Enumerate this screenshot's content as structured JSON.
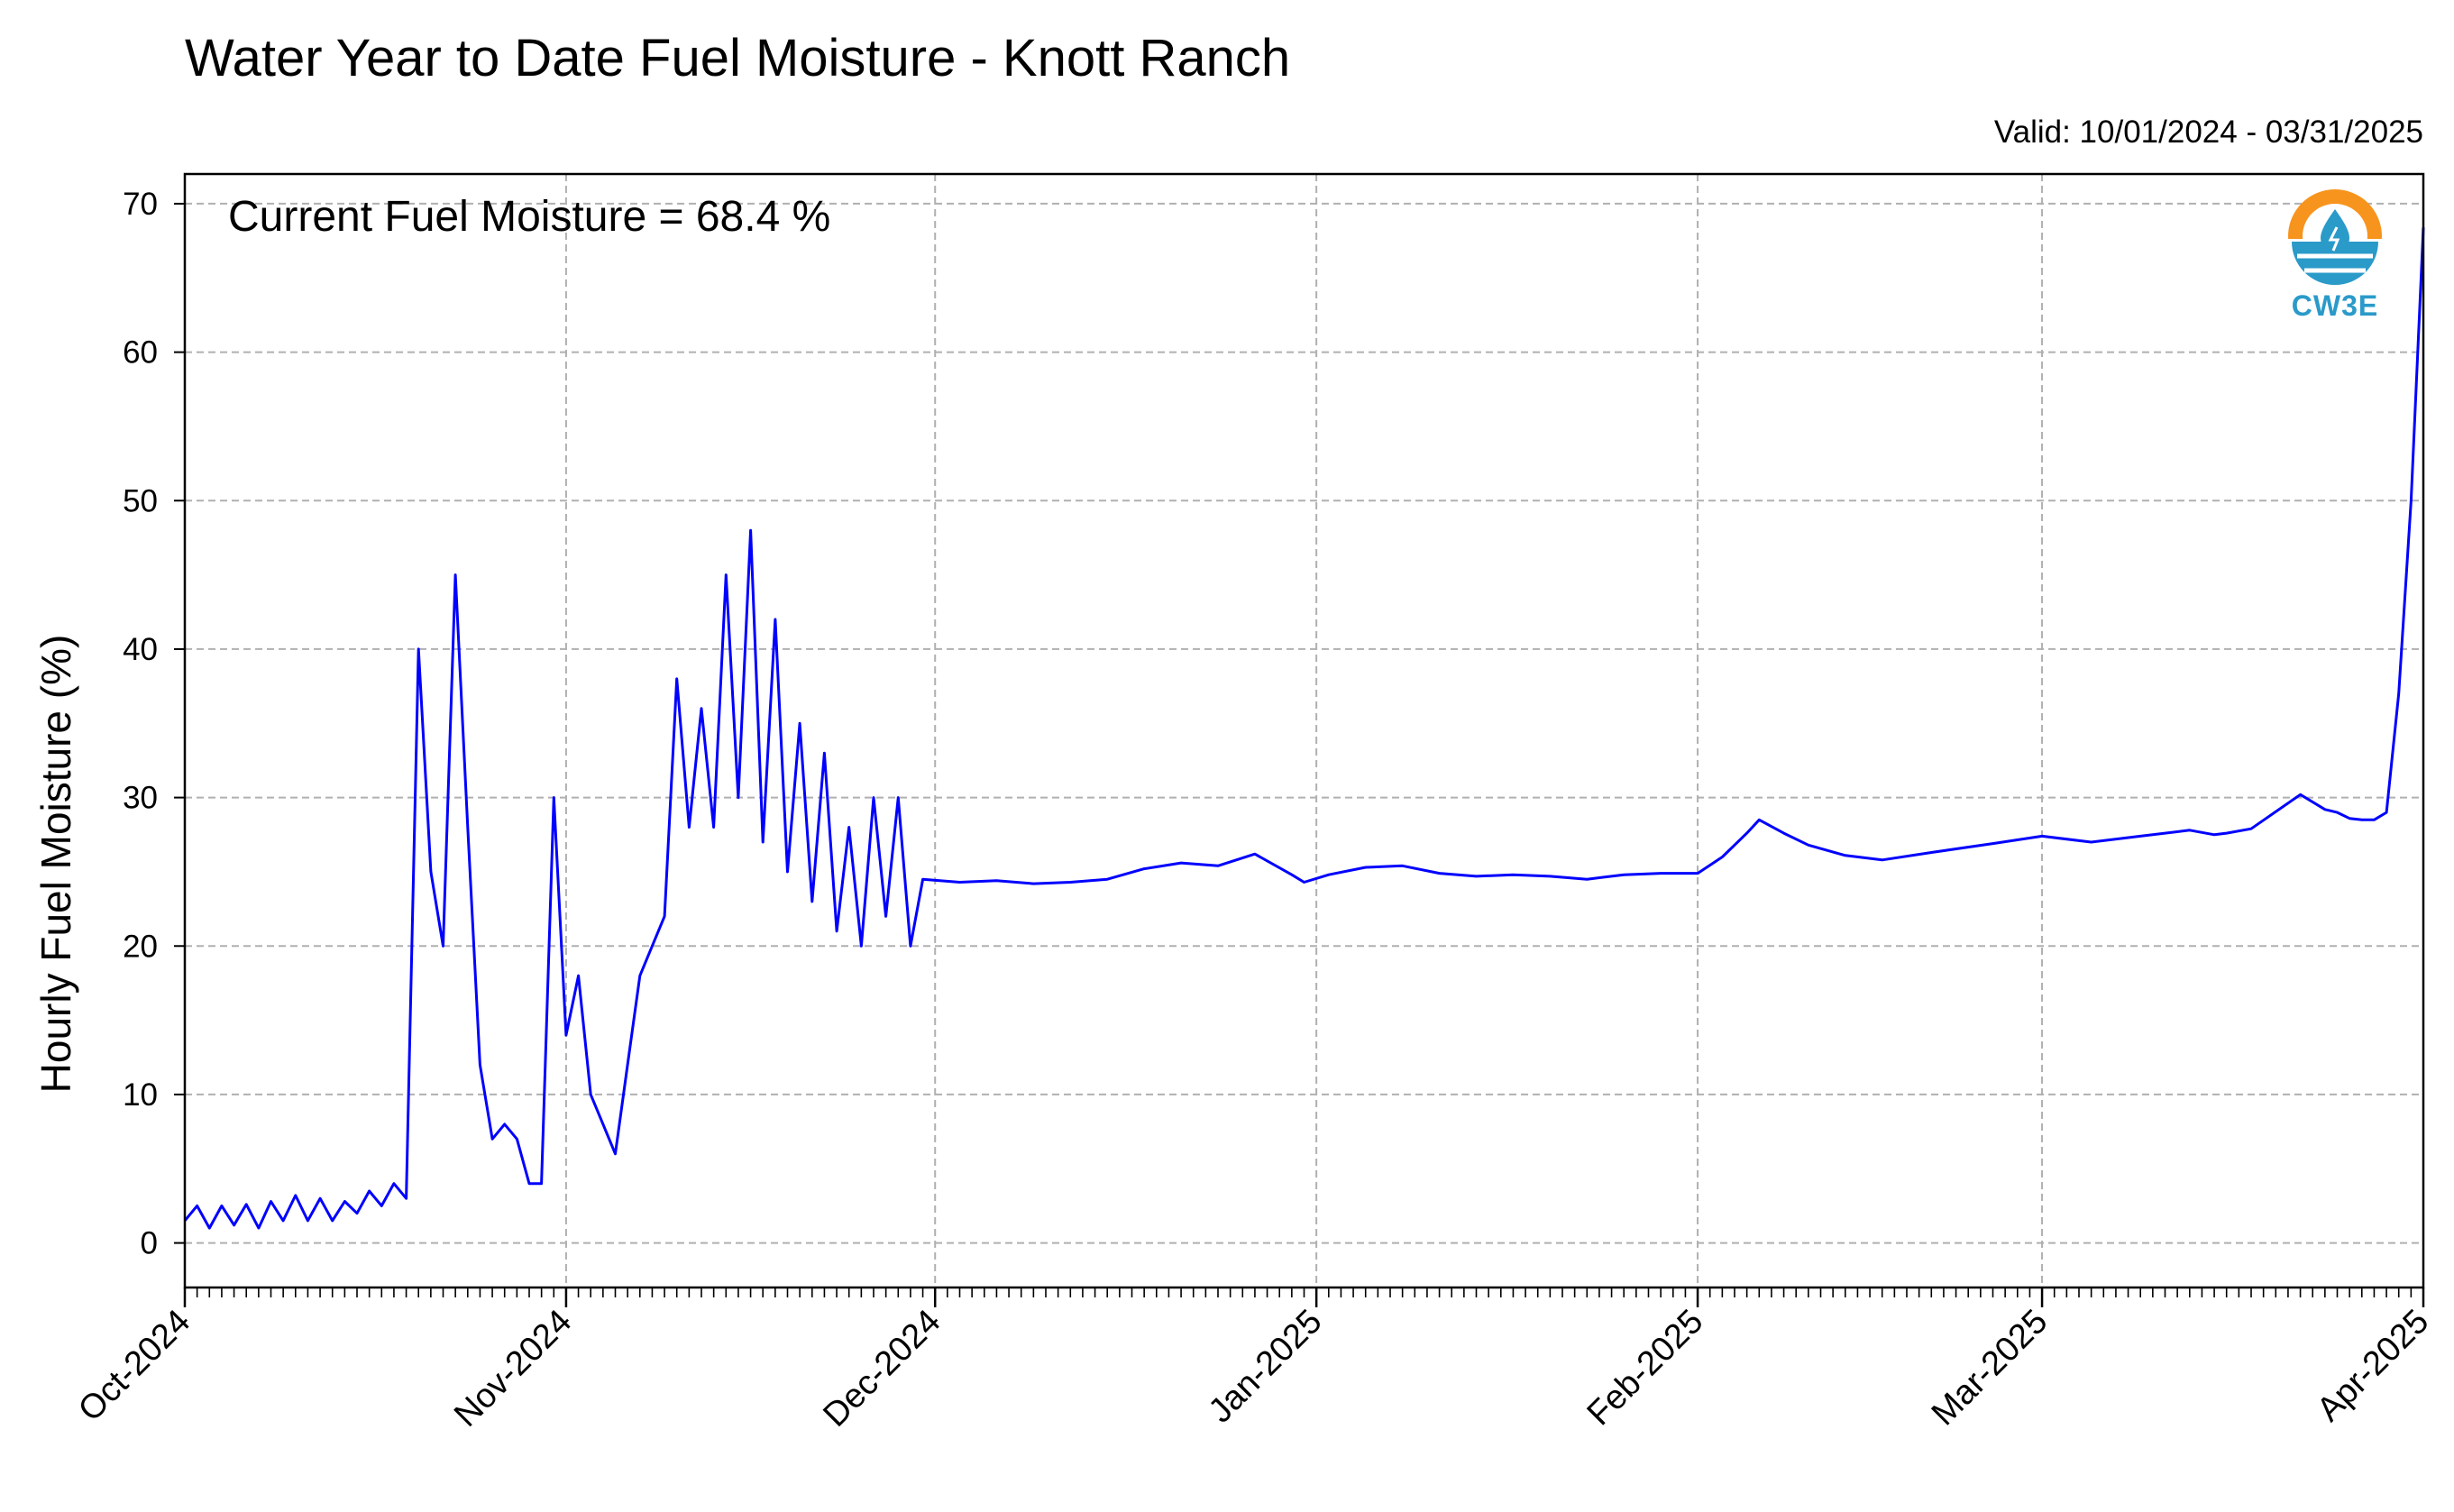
{
  "chart_data": {
    "type": "line",
    "title": "Water Year to Date Fuel Moisture - Knott Ranch",
    "subtitle": "Valid: 10/01/2024 - 03/31/2025",
    "annotation": "Current Fuel Moisture = 68.4 %",
    "xlabel": "",
    "ylabel": "Hourly Fuel Moisture (%)",
    "x_range": [
      "2024-10-01",
      "2025-04-01"
    ],
    "ylim": [
      -3,
      72
    ],
    "yticks": [
      0,
      10,
      20,
      30,
      40,
      50,
      60,
      70
    ],
    "xtick_labels": [
      "Oct-2024",
      "Nov-2024",
      "Dec-2024",
      "Jan-2025",
      "Feb-2025",
      "Mar-2025",
      "Apr-2025"
    ],
    "xtick_dates": [
      "2024-10-01",
      "2024-11-01",
      "2024-12-01",
      "2025-01-01",
      "2025-02-01",
      "2025-03-01",
      "2025-04-01"
    ],
    "grid": true,
    "line_color": "#0000ff",
    "series": [
      {
        "x": [
          "2024-10-01",
          "2024-10-02",
          "2024-10-03",
          "2024-10-04",
          "2024-10-05",
          "2024-10-06",
          "2024-10-07",
          "2024-10-08",
          "2024-10-09",
          "2024-10-10",
          "2024-10-11",
          "2024-10-12",
          "2024-10-13",
          "2024-10-14",
          "2024-10-15",
          "2024-10-16",
          "2024-10-17",
          "2024-10-18",
          "2024-10-19",
          "2024-10-20",
          "2024-10-21",
          "2024-10-22",
          "2024-10-23",
          "2024-10-24",
          "2024-10-25",
          "2024-10-26",
          "2024-10-27",
          "2024-10-28",
          "2024-10-29",
          "2024-10-30",
          "2024-10-31",
          "2024-11-01",
          "2024-11-02",
          "2024-11-03",
          "2024-11-04",
          "2024-11-05",
          "2024-11-06",
          "2024-11-07",
          "2024-11-08",
          "2024-11-09",
          "2024-11-10",
          "2024-11-11",
          "2024-11-12",
          "2024-11-13",
          "2024-11-14",
          "2024-11-15",
          "2024-11-16",
          "2024-11-17",
          "2024-11-18",
          "2024-11-19",
          "2024-11-20",
          "2024-11-21",
          "2024-11-22",
          "2024-11-23",
          "2024-11-24",
          "2024-11-25",
          "2024-11-26",
          "2024-11-27",
          "2024-11-28",
          "2024-11-29",
          "2024-11-30",
          "2024-12-03",
          "2024-12-06",
          "2024-12-09",
          "2024-12-12",
          "2024-12-15",
          "2024-12-18",
          "2024-12-21",
          "2024-12-24",
          "2024-12-27",
          "2024-12-30",
          "2024-12-31",
          "2025-01-02",
          "2025-01-05",
          "2025-01-08",
          "2025-01-11",
          "2025-01-14",
          "2025-01-17",
          "2025-01-20",
          "2025-01-23",
          "2025-01-26",
          "2025-01-29",
          "2025-02-01",
          "2025-02-03",
          "2025-02-05",
          "2025-02-06",
          "2025-02-08",
          "2025-02-10",
          "2025-02-13",
          "2025-02-16",
          "2025-02-20",
          "2025-02-25",
          "2025-03-01",
          "2025-03-05",
          "2025-03-09",
          "2025-03-13",
          "2025-03-15",
          "2025-03-16",
          "2025-03-18",
          "2025-03-22",
          "2025-03-24",
          "2025-03-25",
          "2025-03-26",
          "2025-03-27",
          "2025-03-28",
          "2025-03-29",
          "2025-03-30",
          "2025-03-31",
          "2025-04-01"
        ],
        "y": [
          1.5,
          2.5,
          1.0,
          2.5,
          1.2,
          2.6,
          1.0,
          2.8,
          1.5,
          3.2,
          1.5,
          3.0,
          1.5,
          2.8,
          2.0,
          3.5,
          2.5,
          4.0,
          3.0,
          40.0,
          25.0,
          20.0,
          45.0,
          28.0,
          12.0,
          7.0,
          8.0,
          7.0,
          4.0,
          4.0,
          30.0,
          14.0,
          18.0,
          10.0,
          8.0,
          6.0,
          12.0,
          18.0,
          20.0,
          22.0,
          38.0,
          28.0,
          36.0,
          28.0,
          45.0,
          30.0,
          48.0,
          27.0,
          42.0,
          25.0,
          35.0,
          23.0,
          33.0,
          21.0,
          28.0,
          20.0,
          30.0,
          22.0,
          30.0,
          20.0,
          24.5,
          24.3,
          24.4,
          24.2,
          24.3,
          24.5,
          25.2,
          25.6,
          25.4,
          26.2,
          24.8,
          24.3,
          24.8,
          25.3,
          25.4,
          24.9,
          24.7,
          24.8,
          24.7,
          24.5,
          24.8,
          24.9,
          24.9,
          26.0,
          27.6,
          28.5,
          27.6,
          26.8,
          26.1,
          25.8,
          26.3,
          26.9,
          27.4,
          27.0,
          27.4,
          27.8,
          27.5,
          27.6,
          27.9,
          30.2,
          29.2,
          29.0,
          28.6,
          28.5,
          28.5,
          29.0,
          37.0,
          50.0,
          68.4
        ]
      }
    ]
  },
  "logo": {
    "text": "CW3E",
    "icon": "cw3e-logo-icon"
  }
}
